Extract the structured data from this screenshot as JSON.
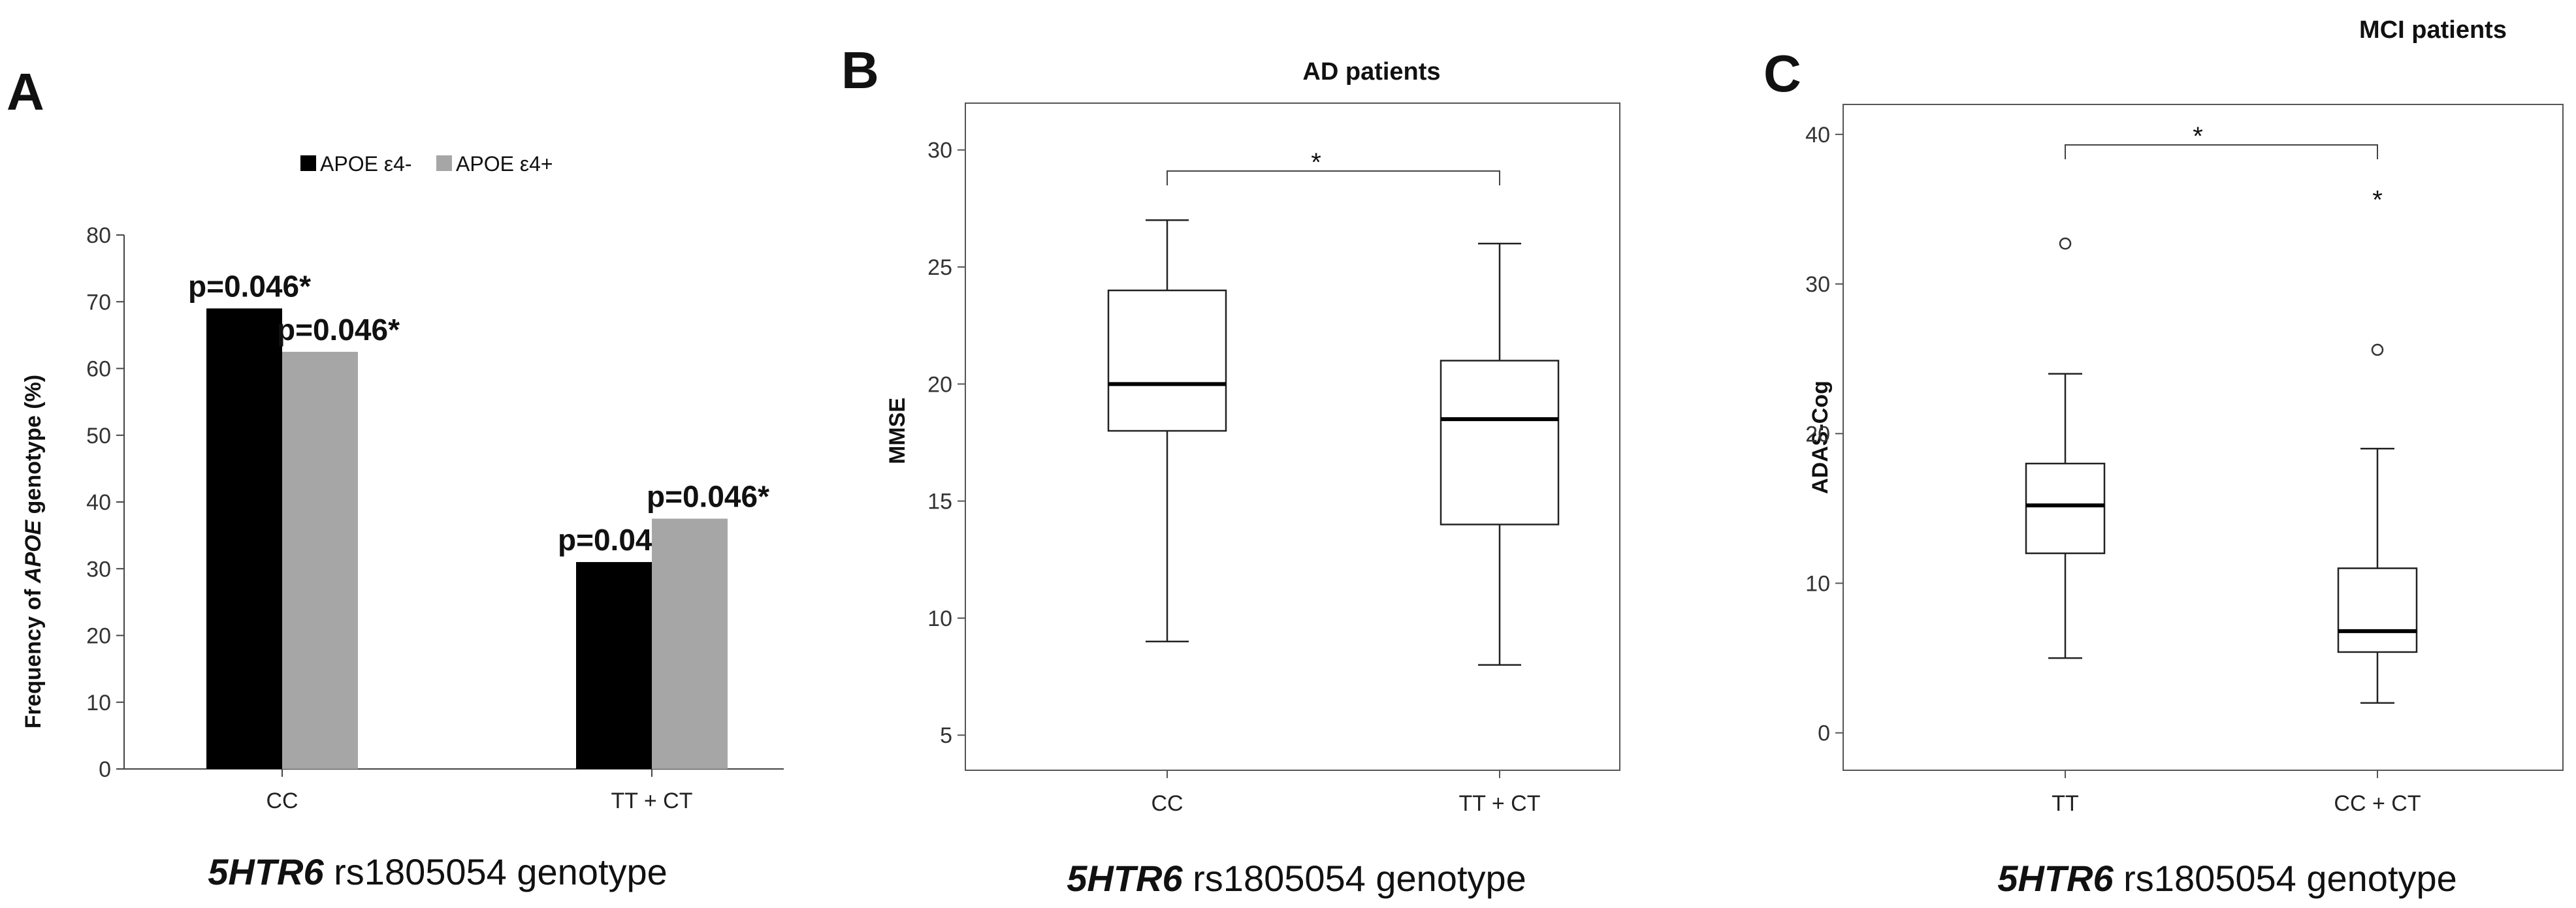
{
  "panels": {
    "A": {
      "letter": "A",
      "legend": [
        "APOE ε4-",
        "APOE ε4+"
      ],
      "ylabel_prefix": "Frequency of ",
      "ylabel_italic": "APOE",
      "ylabel_suffix": " genotype (%)",
      "xlabel_italic": "5HTR6",
      "xlabel_rest": " rs1805054  genotype"
    },
    "B": {
      "letter": "B",
      "title": "AD patients",
      "ylabel": "MMSE",
      "xlabel_italic": "5HTR6",
      "xlabel_rest": " rs1805054  genotype",
      "sig": "*"
    },
    "C": {
      "letter": "C",
      "title": "MCI patients",
      "ylabel": "ADAS-Cog",
      "xlabel_italic": "5HTR6",
      "xlabel_rest": " rs1805054  genotype",
      "sig": "*"
    }
  },
  "chart_data": [
    {
      "type": "bar",
      "categories": [
        "CC",
        "TT + CT"
      ],
      "series": [
        {
          "name": "APOE ε4-",
          "values": [
            69,
            31
          ],
          "color": "#000000"
        },
        {
          "name": "APOE ε4+",
          "values": [
            62.5,
            37.5
          ],
          "color": "#a6a6a6"
        }
      ],
      "labels": [
        "p=0.046*",
        "p=0.046*",
        "p=0.046*",
        "p=0.046*"
      ],
      "ylim": [
        0,
        80
      ],
      "yticks": [
        0,
        10,
        20,
        30,
        40,
        50,
        60,
        70,
        80
      ]
    },
    {
      "type": "box",
      "categories": [
        "CC",
        "TT + CT"
      ],
      "boxes": [
        {
          "min": 9,
          "q1": 18,
          "median": 20,
          "q3": 24,
          "max": 27
        },
        {
          "min": 8,
          "q1": 14,
          "median": 18.5,
          "q3": 21,
          "max": 26
        }
      ],
      "ylim": [
        3.5,
        32
      ],
      "yticks": [
        5,
        10,
        15,
        20,
        25,
        30
      ]
    },
    {
      "type": "box",
      "categories": [
        "TT",
        "CC + CT"
      ],
      "boxes": [
        {
          "min": 5,
          "q1": 12,
          "median": 15.2,
          "q3": 18,
          "max": 24,
          "outliers": [
            {
              "v": 32.7,
              "m": "o"
            }
          ]
        },
        {
          "min": 2,
          "q1": 5.4,
          "median": 6.8,
          "q3": 11,
          "max": 19,
          "outliers": [
            {
              "v": 25.6,
              "m": "o"
            },
            {
              "v": 36,
              "m": "*"
            }
          ]
        }
      ],
      "ylim": [
        -2.5,
        42
      ],
      "yticks": [
        0,
        10,
        20,
        30,
        40
      ]
    }
  ]
}
